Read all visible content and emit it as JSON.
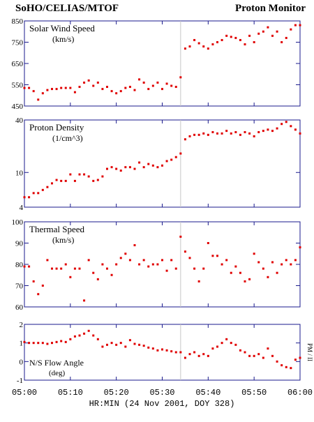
{
  "header": {
    "left": "SoHO/CELIAS/MTOF",
    "right": "Proton Monitor"
  },
  "side_label": "PM / II",
  "xaxis": {
    "label": "HR:MIN (24 Nov 2001, DOY 328)",
    "xlim": [
      0,
      60
    ],
    "xticks": [
      {
        "value": 0,
        "label": "05:00"
      },
      {
        "value": 10,
        "label": "05:10"
      },
      {
        "value": 20,
        "label": "05:20"
      },
      {
        "value": 30,
        "label": "05:30"
      },
      {
        "value": 40,
        "label": "05:40"
      },
      {
        "value": 50,
        "label": "05:50"
      },
      {
        "value": 60,
        "label": "06:00"
      }
    ],
    "marker_x": 34
  },
  "chart_data": [
    {
      "type": "scatter",
      "title": "Solar Wind Speed",
      "unit": "(km/s)",
      "color": "#e00000",
      "x": [
        0,
        1,
        2,
        3,
        4,
        5,
        6,
        7,
        8,
        9,
        10,
        11,
        12,
        13,
        14,
        15,
        16,
        17,
        18,
        19,
        20,
        21,
        22,
        23,
        24,
        25,
        26,
        27,
        28,
        29,
        30,
        31,
        32,
        33,
        34,
        35,
        36,
        37,
        38,
        39,
        40,
        41,
        42,
        43,
        44,
        45,
        46,
        47,
        48,
        49,
        50,
        51,
        52,
        53,
        54,
        55,
        56,
        57,
        58,
        59,
        60
      ],
      "values": [
        535,
        535,
        520,
        480,
        510,
        525,
        530,
        530,
        535,
        535,
        535,
        515,
        540,
        560,
        570,
        545,
        560,
        530,
        540,
        520,
        510,
        520,
        535,
        540,
        525,
        575,
        560,
        530,
        545,
        560,
        530,
        555,
        545,
        540,
        585,
        720,
        730,
        760,
        745,
        730,
        720,
        740,
        750,
        760,
        780,
        775,
        770,
        760,
        740,
        780,
        750,
        790,
        800,
        820,
        780,
        800,
        750,
        770,
        810,
        830,
        830
      ],
      "ylim": [
        450,
        850
      ],
      "yticks": [
        450,
        550,
        650,
        750,
        850
      ]
    },
    {
      "type": "scatter",
      "title": "Proton Density",
      "unit": "(1/cm^3)",
      "color": "#e00000",
      "log": true,
      "x": [
        0,
        1,
        2,
        3,
        4,
        5,
        6,
        7,
        8,
        9,
        10,
        11,
        12,
        13,
        14,
        15,
        16,
        17,
        18,
        19,
        20,
        21,
        22,
        23,
        24,
        25,
        26,
        27,
        28,
        29,
        30,
        31,
        32,
        33,
        34,
        35,
        36,
        37,
        38,
        39,
        40,
        41,
        42,
        43,
        44,
        45,
        46,
        47,
        48,
        49,
        50,
        51,
        52,
        53,
        54,
        55,
        56,
        57,
        58,
        59,
        60
      ],
      "values": [
        5.2,
        5.2,
        5.8,
        5.8,
        6.3,
        6.8,
        7.5,
        8.2,
        8.0,
        8.0,
        9.5,
        8.0,
        9.5,
        9.5,
        9.0,
        8.0,
        8.2,
        9.0,
        11.0,
        11.5,
        11.0,
        10.5,
        11.5,
        11.5,
        11.0,
        13.0,
        11.5,
        12.5,
        12.0,
        11.5,
        12.0,
        13.5,
        14.0,
        15.0,
        16.5,
        24,
        26,
        27,
        27,
        28,
        27,
        29,
        28,
        28,
        30,
        28,
        29,
        27,
        29,
        28,
        26,
        29,
        30,
        31,
        30,
        32,
        36,
        38,
        34,
        31,
        28
      ],
      "ylim": [
        4,
        40
      ],
      "yticks": [
        4,
        10,
        40
      ]
    },
    {
      "type": "scatter",
      "title": "Thermal Speed",
      "unit": "(km/s)",
      "color": "#e00000",
      "x": [
        0,
        1,
        2,
        3,
        4,
        5,
        6,
        7,
        8,
        9,
        10,
        11,
        12,
        13,
        14,
        15,
        16,
        17,
        18,
        19,
        20,
        21,
        22,
        23,
        24,
        25,
        26,
        27,
        28,
        29,
        30,
        31,
        32,
        33,
        34,
        35,
        36,
        37,
        38,
        39,
        40,
        41,
        42,
        43,
        44,
        45,
        46,
        47,
        48,
        49,
        50,
        51,
        52,
        53,
        54,
        55,
        56,
        57,
        58,
        59,
        60
      ],
      "values": [
        79,
        79,
        72,
        66,
        70,
        82,
        78,
        78,
        78,
        80,
        74,
        78,
        78,
        63,
        82,
        76,
        73,
        80,
        78,
        75,
        80,
        83,
        85,
        82,
        89,
        80,
        82,
        79,
        80,
        80,
        82,
        77,
        82,
        78,
        93,
        86,
        83,
        78,
        72,
        78,
        90,
        84,
        84,
        80,
        82,
        76,
        79,
        76,
        72,
        73,
        85,
        81,
        78,
        74,
        81,
        76,
        80,
        82,
        80,
        82,
        88
      ],
      "ylim": [
        60,
        100
      ],
      "yticks": [
        60,
        70,
        80,
        90,
        100
      ]
    },
    {
      "type": "scatter",
      "title": "N/S Flow Angle",
      "unit": "(deg)",
      "color": "#e00000",
      "x": [
        0,
        1,
        2,
        3,
        4,
        5,
        6,
        7,
        8,
        9,
        10,
        11,
        12,
        13,
        14,
        15,
        16,
        17,
        18,
        19,
        20,
        21,
        22,
        23,
        24,
        25,
        26,
        27,
        28,
        29,
        30,
        31,
        32,
        33,
        34,
        35,
        36,
        37,
        38,
        39,
        40,
        41,
        42,
        43,
        44,
        45,
        46,
        47,
        48,
        49,
        50,
        51,
        52,
        53,
        54,
        55,
        56,
        57,
        58,
        59,
        60
      ],
      "values": [
        1.05,
        1.0,
        1.0,
        1.0,
        1.0,
        0.95,
        1.0,
        1.05,
        1.1,
        1.05,
        1.2,
        1.35,
        1.4,
        1.5,
        1.65,
        1.4,
        1.2,
        0.8,
        0.9,
        1.0,
        0.9,
        1.0,
        0.8,
        1.15,
        0.95,
        0.9,
        0.85,
        0.75,
        0.7,
        0.6,
        0.65,
        0.6,
        0.55,
        0.5,
        0.5,
        0.2,
        0.4,
        0.5,
        0.3,
        0.4,
        0.3,
        0.7,
        0.8,
        1.0,
        1.2,
        1.0,
        0.9,
        0.6,
        0.5,
        0.3,
        0.3,
        0.4,
        0.2,
        0.7,
        0.3,
        0.0,
        -0.2,
        -0.3,
        -0.35,
        0.1,
        0.2
      ],
      "ylim": [
        -1,
        2
      ],
      "yticks": [
        -1,
        0,
        1,
        2
      ]
    }
  ]
}
